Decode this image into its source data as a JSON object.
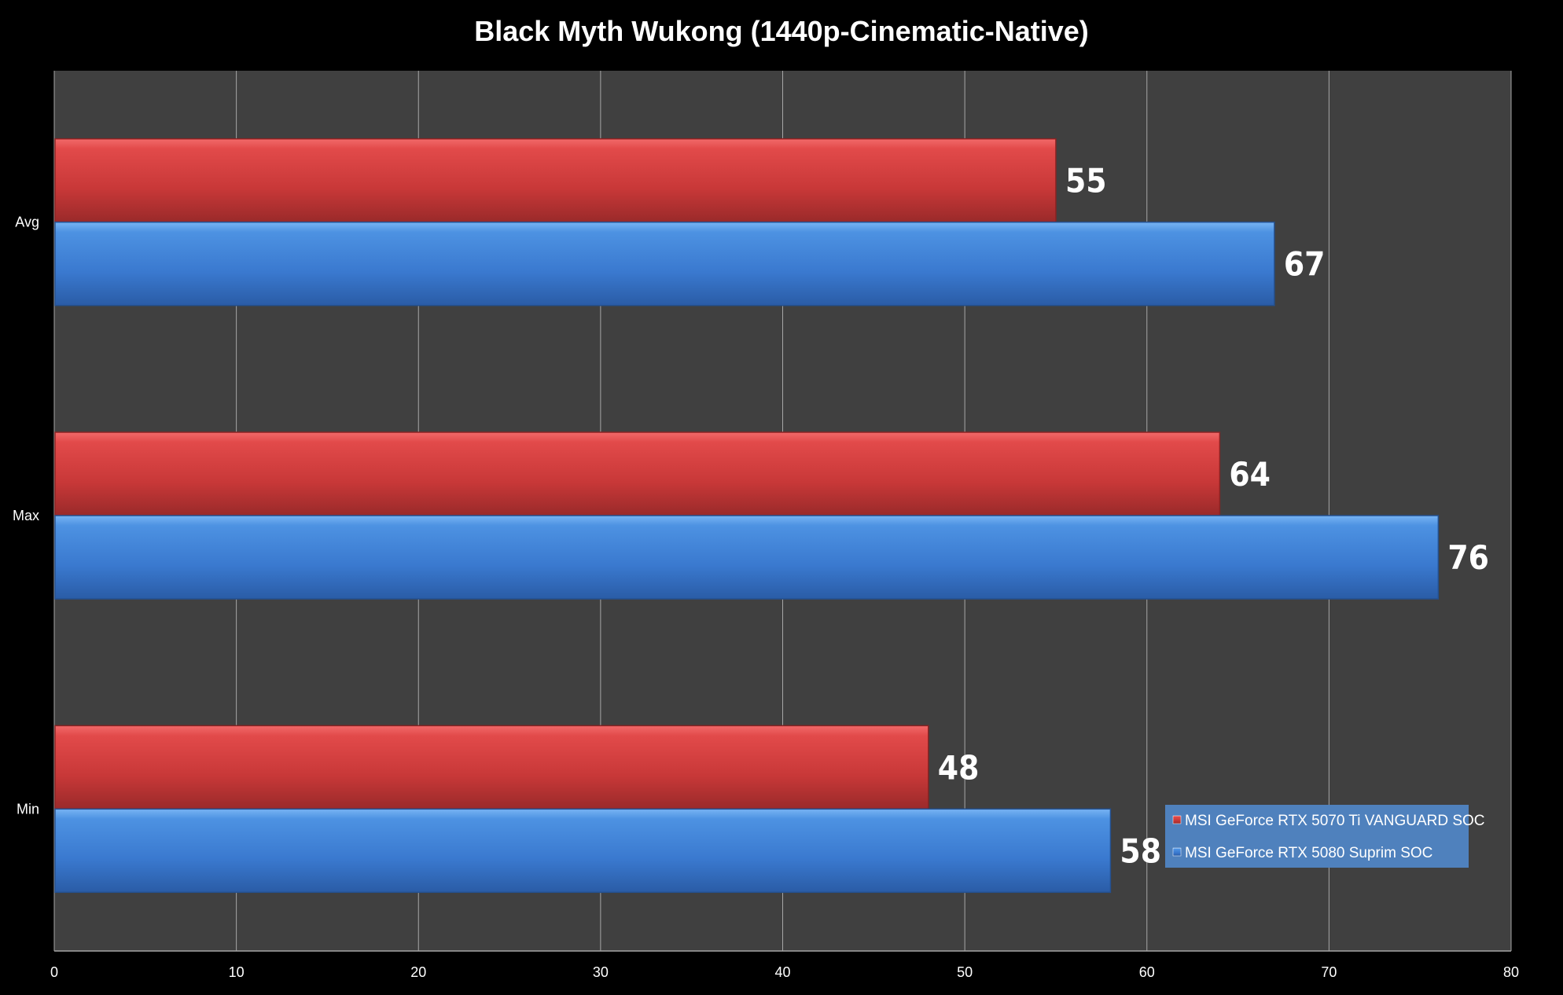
{
  "chart_data": {
    "type": "bar",
    "orientation": "horizontal",
    "title": "Black Myth Wukong (1440p-Cinematic-Native)",
    "categories": [
      "Avg",
      "Max",
      "Min"
    ],
    "series": [
      {
        "name": "MSI GeForce RTX 5070 Ti VANGUARD SOC",
        "color": "#d23c3c",
        "values": [
          55,
          64,
          48
        ]
      },
      {
        "name": "MSI GeForce RTX 5080 Suprim SOC",
        "color": "#3b7fd4",
        "values": [
          67,
          76,
          58
        ]
      }
    ],
    "xlim": [
      0,
      80
    ],
    "xticks": [
      0,
      10,
      20,
      30,
      40,
      50,
      60,
      70,
      80
    ],
    "grid": true,
    "legend_position": "bottom-right",
    "xlabel": "",
    "ylabel": ""
  },
  "colors": {
    "background": "#000000",
    "plot_area": "#404040",
    "gridline": "#a6a6a6",
    "legend_box": "#4f81bd"
  }
}
